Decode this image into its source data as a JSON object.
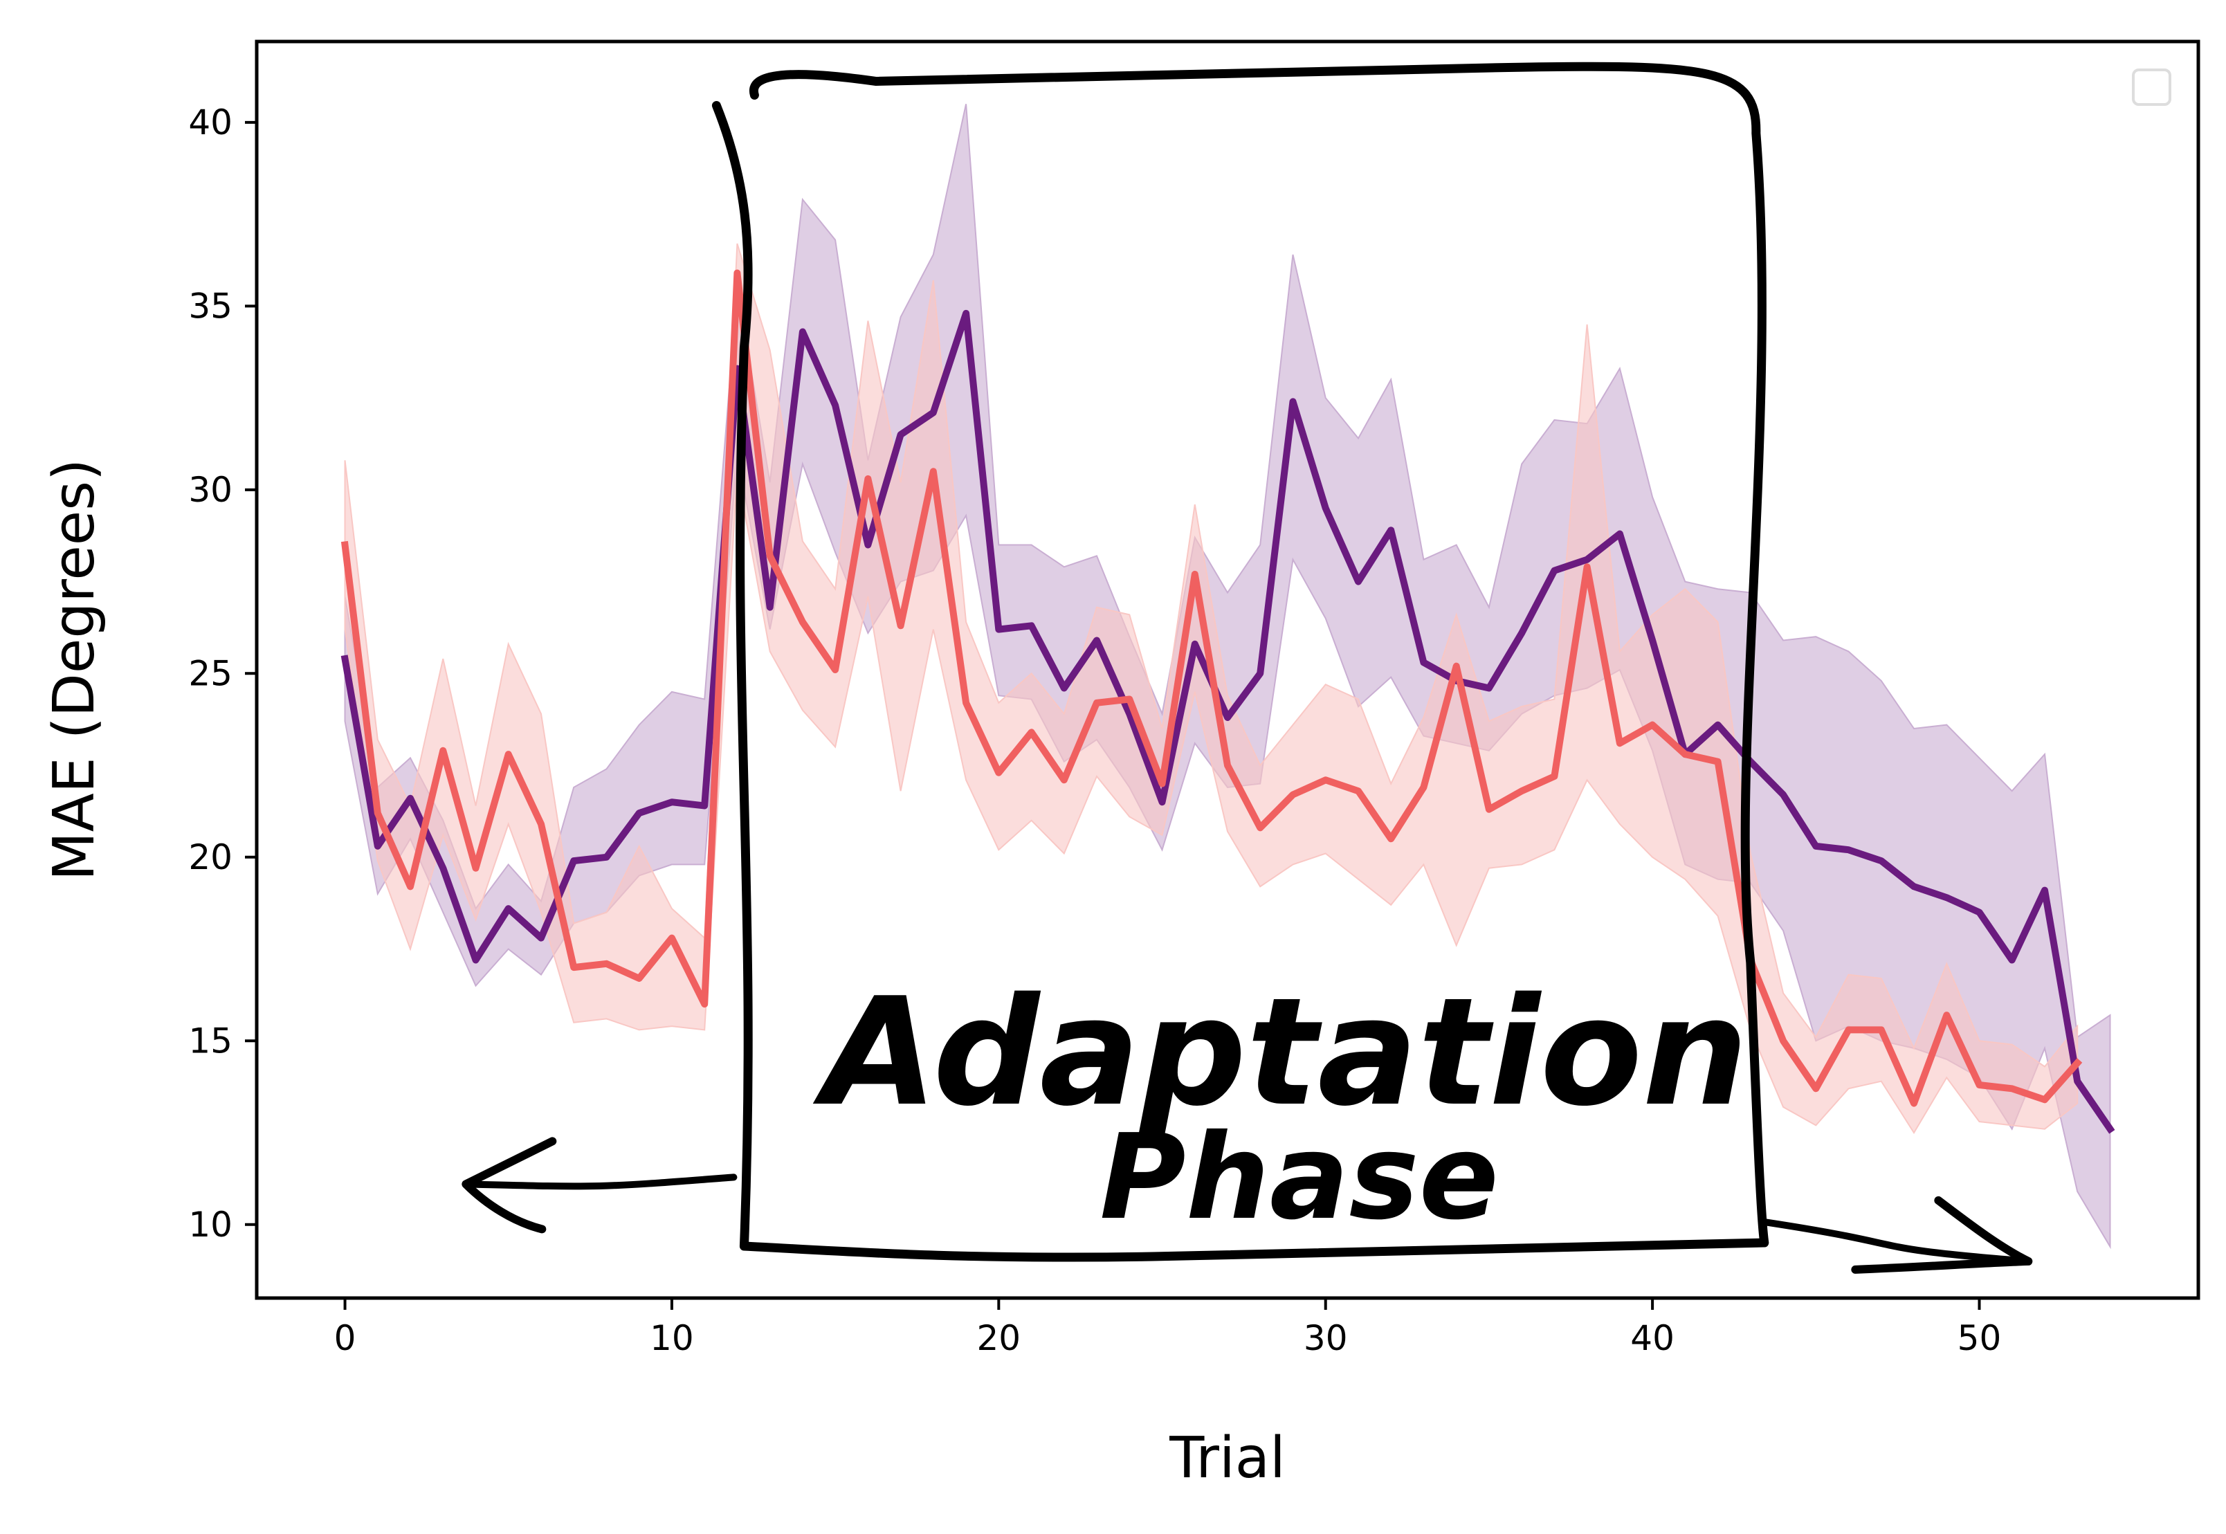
{
  "chart_data": {
    "type": "line",
    "title": "",
    "xlabel": "Trial",
    "ylabel": "MAE (Degrees)",
    "xlim": [
      -2.7,
      56.7
    ],
    "ylim": [
      8.0,
      42.2
    ],
    "xticks": [
      0,
      10,
      20,
      30,
      40,
      50
    ],
    "yticks": [
      10,
      15,
      20,
      25,
      30,
      35,
      40
    ],
    "grid": false,
    "legend": {
      "placement": "top-right",
      "entries": []
    },
    "annotation": {
      "line1": "Adaptation",
      "line2": "Phase"
    },
    "adaptation_box": {
      "x_start": 12,
      "x_end": 43,
      "y_bottom": 9.6,
      "y_top": 41.4
    },
    "arrows": {
      "left_tip_x": 3.7,
      "left_tip_y": 11.1,
      "right_tip_x": 51.5,
      "right_tip_y": 9.0
    },
    "series": [
      {
        "color": "#6a1b7f",
        "band_color": "#c9aed2",
        "x_start": 0,
        "values": [
          25.4,
          20.3,
          21.6,
          19.7,
          17.2,
          18.6,
          17.8,
          19.9,
          20.0,
          21.2,
          21.5,
          21.4,
          33.3,
          26.8,
          34.3,
          32.3,
          28.5,
          31.5,
          32.1,
          34.8,
          26.2,
          26.3,
          24.6,
          25.9,
          23.9,
          21.5,
          25.8,
          23.8,
          25.0,
          32.4,
          29.5,
          27.5,
          28.9,
          25.3,
          24.8,
          24.6,
          26.1,
          27.8,
          28.1,
          28.8,
          25.9,
          22.8,
          23.6,
          22.6,
          21.7,
          20.3,
          20.2,
          19.9,
          19.2,
          18.9,
          18.5,
          17.2,
          19.1,
          13.9,
          12.6
        ],
        "lower": [
          23.7,
          19.0,
          20.5,
          18.5,
          16.5,
          17.5,
          16.8,
          18.2,
          18.5,
          19.5,
          19.8,
          19.8,
          31.0,
          26.2,
          30.7,
          28.3,
          26.1,
          27.5,
          27.8,
          29.3,
          24.4,
          24.3,
          22.6,
          23.2,
          21.9,
          20.2,
          23.1,
          21.9,
          22.0,
          28.1,
          26.5,
          24.1,
          24.9,
          23.3,
          23.1,
          22.9,
          23.9,
          24.4,
          24.6,
          25.1,
          22.9,
          19.8,
          19.4,
          19.3,
          18.0,
          15.0,
          15.4,
          15.0,
          14.8,
          14.5,
          14.0,
          12.6,
          14.8,
          10.9,
          9.4
        ],
        "upper": [
          27.1,
          21.9,
          22.7,
          21.0,
          18.6,
          19.8,
          18.8,
          21.9,
          22.4,
          23.6,
          24.5,
          24.3,
          35.5,
          30.2,
          37.9,
          36.8,
          30.8,
          34.7,
          36.4,
          40.5,
          28.5,
          28.5,
          27.9,
          28.2,
          26.0,
          23.9,
          28.7,
          27.2,
          28.5,
          36.4,
          32.5,
          31.4,
          33.0,
          28.1,
          28.5,
          26.8,
          30.7,
          31.9,
          31.8,
          33.3,
          29.8,
          27.5,
          27.3,
          27.2,
          25.9,
          26.0,
          25.6,
          24.8,
          23.5,
          23.6,
          22.7,
          21.8,
          22.8,
          15.1,
          15.7
        ]
      },
      {
        "color": "#f06060",
        "band_color": "#f9c7c4",
        "x_start": 0,
        "values": [
          28.5,
          21.2,
          19.2,
          22.9,
          19.7,
          22.8,
          20.9,
          17.0,
          17.1,
          16.7,
          17.8,
          16.0,
          35.9,
          28.2,
          26.4,
          25.1,
          30.3,
          26.3,
          30.5,
          24.2,
          22.3,
          23.4,
          22.1,
          24.2,
          24.3,
          22.0,
          27.7,
          22.5,
          20.8,
          21.7,
          22.1,
          21.8,
          20.5,
          21.9,
          25.2,
          21.3,
          21.8,
          22.2,
          27.9,
          23.1,
          23.6,
          22.8,
          22.6,
          17.2,
          15.0,
          13.7,
          15.3,
          15.3,
          13.3,
          15.7,
          13.8,
          13.7,
          13.4,
          14.4
        ],
        "lower": [
          26.2,
          19.9,
          17.5,
          20.6,
          18.3,
          20.9,
          18.5,
          15.5,
          15.6,
          15.3,
          15.4,
          15.3,
          30.5,
          25.6,
          24.0,
          23.0,
          27.1,
          21.8,
          26.2,
          22.1,
          20.2,
          21.0,
          20.1,
          22.2,
          21.1,
          20.6,
          24.5,
          20.7,
          19.2,
          19.8,
          20.1,
          19.4,
          18.7,
          19.8,
          17.6,
          19.7,
          19.8,
          20.2,
          22.1,
          20.9,
          20.0,
          19.4,
          18.4,
          15.3,
          13.2,
          12.7,
          13.7,
          13.9,
          12.5,
          14.0,
          12.8,
          12.7,
          12.6,
          13.3
        ],
        "upper": [
          30.8,
          23.2,
          21.4,
          25.4,
          21.4,
          25.8,
          23.9,
          18.2,
          18.5,
          20.3,
          18.6,
          17.8,
          36.7,
          33.8,
          28.6,
          27.3,
          34.6,
          30.2,
          35.7,
          26.4,
          24.2,
          25.0,
          23.9,
          26.8,
          26.6,
          23.5,
          29.6,
          24.4,
          22.5,
          23.6,
          24.7,
          24.3,
          22.0,
          23.8,
          26.6,
          23.7,
          24.1,
          24.3,
          34.5,
          25.6,
          26.6,
          27.3,
          26.4,
          20.1,
          16.3,
          15.1,
          16.8,
          16.7,
          14.8,
          17.1,
          15.0,
          14.9,
          14.3,
          15.4
        ]
      }
    ]
  }
}
